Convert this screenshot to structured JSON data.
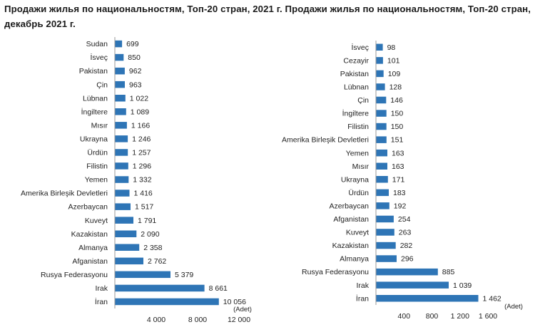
{
  "title": "Продажи жилья по национальностям, Топ-20 стран, 2021 г. Продажи жилья по национальностям, Топ-20 стран, декабрь 2021 г.",
  "colors": {
    "bar": "#2e75b6",
    "axis": "#999999"
  },
  "chart_data": [
    {
      "type": "bar",
      "orientation": "horizontal",
      "categories": [
        "Sudan",
        "İsveç",
        "Pakistan",
        "Çin",
        "Lübnan",
        "İngiltere",
        "Mısır",
        "Ukrayna",
        "Ürdün",
        "Filistin",
        "Yemen",
        "Amerika Birleşik Devletleri",
        "Azerbaycan",
        "Kuveyt",
        "Kazakistan",
        "Almanya",
        "Afganistan",
        "Rusya Federasyonu",
        "Irak",
        "İran"
      ],
      "values": [
        699,
        850,
        962,
        963,
        1022,
        1089,
        1166,
        1246,
        1257,
        1296,
        1332,
        1416,
        1517,
        1791,
        2090,
        2358,
        2762,
        5379,
        8661,
        10056
      ],
      "value_labels": [
        "699",
        "850",
        "962",
        "963",
        "1 022",
        "1 089",
        "1 166",
        "1 246",
        "1 257",
        "1 296",
        "1 332",
        "1 416",
        "1 517",
        "1 791",
        "2 090",
        "2 358",
        "2 762",
        "5 379",
        "8 661",
        "10 056"
      ],
      "xlim": [
        0,
        12000
      ],
      "ticks": [
        4000,
        8000,
        12000
      ],
      "tick_labels": [
        "4 000",
        "8 000",
        "12 000"
      ],
      "unit": "(Adet)",
      "grid": false
    },
    {
      "type": "bar",
      "orientation": "horizontal",
      "categories": [
        "İsveç",
        "Cezayir",
        "Pakistan",
        "Lübnan",
        "Çin",
        "İngiltere",
        "Filistin",
        "Amerika Birleşik Devletleri",
        "Yemen",
        "Mısır",
        "Ukrayna",
        "Ürdün",
        "Azerbaycan",
        "Afganistan",
        "Kuveyt",
        "Kazakistan",
        "Almanya",
        "Rusya Federasyonu",
        "Irak",
        "İran"
      ],
      "values": [
        98,
        101,
        109,
        128,
        146,
        150,
        150,
        151,
        163,
        163,
        171,
        183,
        192,
        254,
        263,
        282,
        296,
        885,
        1039,
        1462
      ],
      "value_labels": [
        "98",
        "101",
        "109",
        "128",
        "146",
        "150",
        "150",
        "151",
        "163",
        "163",
        "171",
        "183",
        "192",
        "254",
        "263",
        "282",
        "296",
        "885",
        "1 039",
        "1 462"
      ],
      "xlim": [
        0,
        1600
      ],
      "ticks": [
        400,
        800,
        1200,
        1600
      ],
      "tick_labels": [
        "400",
        "800",
        "1 200",
        "1 600"
      ],
      "unit": "(Adet)",
      "grid": false
    }
  ]
}
